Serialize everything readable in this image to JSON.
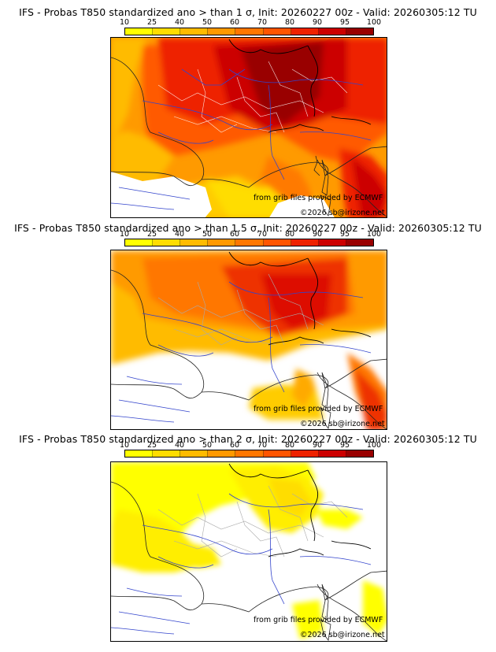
{
  "colorbar": {
    "levels": [
      "10",
      "25",
      "40",
      "50",
      "60",
      "70",
      "80",
      "90",
      "95",
      "100"
    ],
    "colors": [
      "#ffff00",
      "#ffdd00",
      "#ffbb00",
      "#ff9900",
      "#ff7700",
      "#ff5500",
      "#ee2200",
      "#cc0000",
      "#990000"
    ]
  },
  "panels": [
    {
      "title": "IFS - Probas T850  standardized ano > than 1 σ, Init: 20260227 00z - Valid: 20260305:12 TU",
      "credit_source": "from grib files provided by ECMWF",
      "credit_copyright": "©2026 sb@irizone.net"
    },
    {
      "title": "IFS - Probas T850  standardized ano > than 1.5 σ, Init: 20260227 00z - Valid: 20260305:12 TU",
      "credit_source": "from grib files provided by ECMWF",
      "credit_copyright": "©2026 sb@irizone.net"
    },
    {
      "title": "IFS - Probas T850  standardized ano > than 2 σ, Init: 20260227 00z - Valid: 20260305:12 TU",
      "credit_source": "from grib files provided by ECMWF",
      "credit_copyright": "©2026 sb@irizone.net"
    }
  ]
}
